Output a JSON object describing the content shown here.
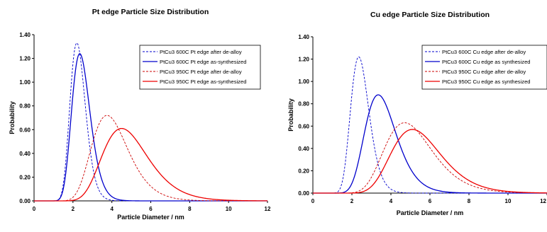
{
  "chart_data": [
    {
      "type": "line",
      "title": "Pt edge Particle Size Distribution",
      "xlabel": "Particle Diameter / nm",
      "ylabel": "Probability",
      "xlim": [
        0,
        12
      ],
      "ylim": [
        0,
        1.4
      ],
      "xticks": [
        "0",
        "2",
        "4",
        "6",
        "8",
        "10",
        "12"
      ],
      "yticks": [
        "0.00",
        "0.20",
        "0.40",
        "0.60",
        "0.80",
        "1.00",
        "1.20",
        "1.40"
      ],
      "grid": false,
      "legend_position": "top-right",
      "series": [
        {
          "name": "PtCu3 600C Pt edge after de-alloy",
          "color": "#0000cc",
          "dash": "dashed",
          "mode": 2.2,
          "peak": 1.33,
          "width_param": 0.18
        },
        {
          "name": "PtCu3 600C Pt edge as-synthesized",
          "color": "#0000cc",
          "dash": "solid",
          "mode": 2.35,
          "peak": 1.24,
          "width_param": 0.2
        },
        {
          "name": "PtCu3 950C Pt edge after de-alloy",
          "color": "#cc0000",
          "dash": "dashed",
          "mode": 3.75,
          "peak": 0.72,
          "width_param": 0.25
        },
        {
          "name": "PtCu3 950C Pt edge as-synthesized",
          "color": "#ee0000",
          "dash": "solid",
          "mode": 4.5,
          "peak": 0.61,
          "width_param": 0.26
        }
      ]
    },
    {
      "type": "line",
      "title": "Cu edge Particle Size Distribution",
      "xlabel": "Particle Diameter / nm",
      "ylabel": "Probability",
      "xlim": [
        0,
        12
      ],
      "ylim": [
        0,
        1.4
      ],
      "xticks": [
        "0",
        "2",
        "4",
        "6",
        "8",
        "10",
        "12"
      ],
      "yticks": [
        "0.00",
        "0.20",
        "0.40",
        "0.60",
        "0.80",
        "1.00",
        "1.20",
        "1.40"
      ],
      "grid": false,
      "legend_position": "top-right",
      "series": [
        {
          "name": "PtCu3 600C Cu edge after de-alloy",
          "color": "#0000cc",
          "dash": "dashed",
          "mode": 2.35,
          "peak": 1.22,
          "width_param": 0.2
        },
        {
          "name": "PtCu3 600C Cu edge as synthesized",
          "color": "#0000cc",
          "dash": "solid",
          "mode": 3.35,
          "peak": 0.88,
          "width_param": 0.24
        },
        {
          "name": "PtCu3 950C Cu edge after de-alloy",
          "color": "#cc0000",
          "dash": "dashed",
          "mode": 4.7,
          "peak": 0.63,
          "width_param": 0.26
        },
        {
          "name": "PtCu3 950C Cu edge as synthesized",
          "color": "#ee0000",
          "dash": "solid",
          "mode": 5.1,
          "peak": 0.57,
          "width_param": 0.25
        }
      ]
    }
  ]
}
